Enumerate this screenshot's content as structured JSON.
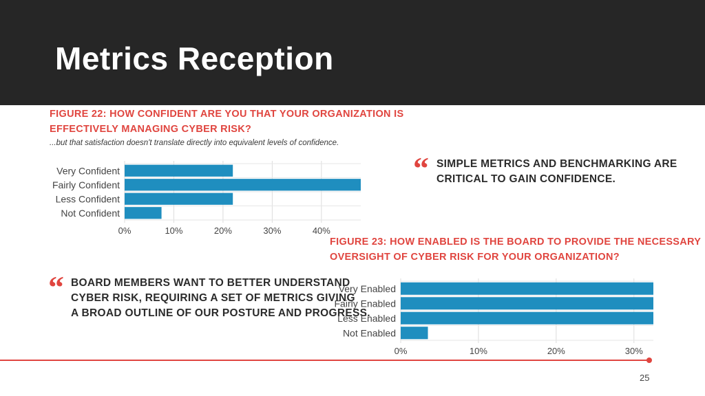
{
  "header": {
    "title": "Metrics Reception"
  },
  "figure22": {
    "title_lines": [
      "FIGURE 22: HOW CONFIDENT ARE YOU THAT YOUR ORGANIZATION IS",
      "EFFECTIVELY MANAGING CYBER RISK?"
    ],
    "subtitle": "...but that satisfaction doesn't translate directly into equivalent levels of confidence."
  },
  "figure23": {
    "title_lines": [
      "FIGURE 23: HOW ENABLED IS THE BOARD TO PROVIDE THE NECESSARY",
      "OVERSIGHT OF CYBER RISK FOR YOUR ORGANIZATION?"
    ]
  },
  "quotes": {
    "quote1": {
      "mark": "“",
      "lines": [
        "SIMPLE METRICS AND BENCHMARKING ARE",
        "CRITICAL TO GAIN CONFIDENCE."
      ]
    },
    "quote2": {
      "mark": "“",
      "lines": [
        "BOARD MEMBERS WANT TO BETTER UNDERSTAND",
        "CYBER RISK, REQUIRING A SET OF METRICS GIVING",
        "A BROAD OUTLINE OF OUR POSTURE AND PROGRESS."
      ]
    }
  },
  "footer": {
    "page_number": "25"
  },
  "colors": {
    "bar": "#1f8ebf",
    "accent": "#e0453f",
    "header_bg": "#262626"
  },
  "chart_data": [
    {
      "type": "bar",
      "orientation": "horizontal",
      "title": "FIGURE 22: HOW CONFIDENT ARE YOU THAT YOUR ORGANIZATION IS EFFECTIVELY MANAGING CYBER RISK?",
      "categories": [
        "Very Confident",
        "Fairly Confident",
        "Less Confident",
        "Not Confident"
      ],
      "values": [
        22,
        48,
        22,
        7.5
      ],
      "xlim": [
        0,
        48
      ],
      "xticks": [
        0,
        10,
        20,
        30,
        40
      ],
      "xtick_labels": [
        "0%",
        "10%",
        "20%",
        "30%",
        "40%"
      ],
      "grid": true
    },
    {
      "type": "bar",
      "orientation": "horizontal",
      "title": "FIGURE 23: HOW ENABLED IS THE BOARD TO PROVIDE THE NECESSARY OVERSIGHT OF CYBER RISK FOR YOUR ORGANIZATION?",
      "categories": [
        "Very Enabled",
        "Fairly Enabled",
        "Less Enabled",
        "Not Enabled"
      ],
      "values": [
        32.5,
        32.5,
        32.5,
        3.5
      ],
      "xlim": [
        0,
        32.5
      ],
      "xticks": [
        0,
        10,
        20,
        30
      ],
      "xtick_labels": [
        "0%",
        "10%",
        "20%",
        "30%"
      ],
      "grid": true
    }
  ]
}
